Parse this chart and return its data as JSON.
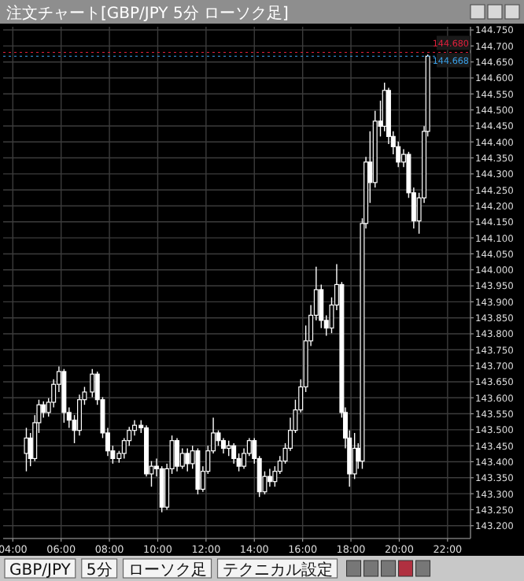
{
  "chart_data": {
    "type": "candlestick",
    "title": "注文チャート[GBP/JPY 5分 ローソク足]",
    "color": "#ffffff",
    "grid": true,
    "xlim": [
      3.6,
      22.95
    ],
    "ylim": [
      143.16,
      144.76
    ],
    "xticks": [
      {
        "value": 4,
        "label": "04:00"
      },
      {
        "value": 6,
        "label": "06:00"
      },
      {
        "value": 8,
        "label": "08:00"
      },
      {
        "value": 10,
        "label": "10:00"
      },
      {
        "value": 12,
        "label": "12:00"
      },
      {
        "value": 14,
        "label": "14:00"
      },
      {
        "value": 16,
        "label": "16:00"
      },
      {
        "value": 18,
        "label": "18:00"
      },
      {
        "value": 20,
        "label": "20:00"
      },
      {
        "value": 22,
        "label": "22:00"
      }
    ],
    "yticks": [
      {
        "value": 143.2,
        "label": "143.200"
      },
      {
        "value": 143.25,
        "label": "143.250"
      },
      {
        "value": 143.3,
        "label": "143.300"
      },
      {
        "value": 143.35,
        "label": "143.350"
      },
      {
        "value": 143.4,
        "label": "143.400"
      },
      {
        "value": 143.45,
        "label": "143.450"
      },
      {
        "value": 143.5,
        "label": "143.500"
      },
      {
        "value": 143.55,
        "label": "143.550"
      },
      {
        "value": 143.6,
        "label": "143.600"
      },
      {
        "value": 143.65,
        "label": "143.650"
      },
      {
        "value": 143.7,
        "label": "143.700"
      },
      {
        "value": 143.75,
        "label": "143.750"
      },
      {
        "value": 143.8,
        "label": "143.800"
      },
      {
        "value": 143.85,
        "label": "143.850"
      },
      {
        "value": 143.9,
        "label": "143.900"
      },
      {
        "value": 143.95,
        "label": "143.950"
      },
      {
        "value": 144.0,
        "label": "144.000"
      },
      {
        "value": 144.05,
        "label": "144.050"
      },
      {
        "value": 144.1,
        "label": "144.100"
      },
      {
        "value": 144.15,
        "label": "144.150"
      },
      {
        "value": 144.2,
        "label": "144.200"
      },
      {
        "value": 144.25,
        "label": "144.250"
      },
      {
        "value": 144.3,
        "label": "144.300"
      },
      {
        "value": 144.35,
        "label": "144.350"
      },
      {
        "value": 144.4,
        "label": "144.400"
      },
      {
        "value": 144.45,
        "label": "144.450"
      },
      {
        "value": 144.5,
        "label": "144.500"
      },
      {
        "value": 144.55,
        "label": "144.550"
      },
      {
        "value": 144.6,
        "label": "144.600"
      },
      {
        "value": 144.65,
        "label": "144.650"
      },
      {
        "value": 144.7,
        "label": "144.700"
      },
      {
        "value": 144.75,
        "label": "144.750"
      }
    ],
    "ref_lines": [
      {
        "axis": "y",
        "value": 144.68,
        "label": "144.680",
        "color": "#e0203c"
      },
      {
        "axis": "y",
        "value": 144.668,
        "label": "144.668",
        "color": "#3aa0e8"
      }
    ],
    "annotations": [
      "GBP/JPY",
      "5分",
      "ローソク足",
      "テクニカル設定"
    ],
    "x": [
      4.56,
      4.73,
      4.91,
      5.08,
      5.27,
      5.48,
      5.69,
      5.91,
      6.12,
      6.33,
      6.55,
      6.76,
      6.97,
      7.29,
      7.5,
      7.72,
      7.93,
      8.14,
      8.4,
      8.61,
      8.82,
      9.04,
      9.31,
      9.53,
      9.74,
      9.95,
      10.17,
      10.38,
      10.59,
      10.8,
      11.02,
      11.23,
      11.44,
      11.66,
      11.87,
      12.08,
      12.3,
      12.51,
      12.72,
      12.94,
      13.15,
      13.36,
      13.57,
      13.79,
      14.0,
      14.21,
      14.43,
      14.64,
      14.85,
      15.06,
      15.28,
      15.49,
      15.7,
      15.92,
      16.13,
      16.34,
      16.56,
      16.77,
      16.98,
      17.2,
      17.41,
      17.62,
      17.77,
      17.94,
      18.15,
      18.3,
      18.47,
      18.62,
      18.79,
      19.0,
      19.22,
      19.39,
      19.56,
      19.75,
      19.96,
      20.18,
      20.39,
      20.6,
      20.82,
      21.03,
      21.18
    ],
    "ohlc": [
      [
        143.426,
        143.506,
        143.37,
        143.474
      ],
      [
        143.474,
        143.49,
        143.386,
        143.41
      ],
      [
        143.41,
        143.546,
        143.402,
        143.522
      ],
      [
        143.522,
        143.594,
        143.49,
        143.578
      ],
      [
        143.578,
        143.589,
        143.538,
        143.554
      ],
      [
        143.554,
        143.599,
        143.541,
        143.586
      ],
      [
        143.586,
        143.658,
        143.57,
        143.642
      ],
      [
        143.642,
        143.698,
        143.618,
        143.682
      ],
      [
        143.682,
        143.69,
        143.522,
        143.554
      ],
      [
        143.554,
        143.57,
        143.506,
        143.53
      ],
      [
        143.53,
        143.546,
        143.458,
        143.498
      ],
      [
        143.498,
        143.61,
        143.482,
        143.594
      ],
      [
        143.594,
        143.634,
        143.578,
        143.618
      ],
      [
        143.618,
        143.69,
        143.602,
        143.674
      ],
      [
        143.674,
        143.682,
        143.578,
        143.594
      ],
      [
        143.594,
        143.602,
        143.474,
        143.49
      ],
      [
        143.49,
        143.506,
        143.418,
        143.434
      ],
      [
        143.434,
        143.45,
        143.394,
        143.41
      ],
      [
        143.41,
        143.434,
        143.397,
        143.426
      ],
      [
        143.426,
        143.474,
        143.41,
        143.466
      ],
      [
        143.466,
        143.509,
        143.45,
        143.498
      ],
      [
        143.498,
        143.53,
        143.482,
        143.514
      ],
      [
        143.514,
        143.53,
        143.49,
        143.506
      ],
      [
        143.506,
        143.514,
        143.354,
        143.362
      ],
      [
        143.362,
        143.402,
        143.322,
        143.386
      ],
      [
        143.386,
        143.41,
        143.354,
        143.378
      ],
      [
        143.378,
        143.386,
        143.242,
        143.258
      ],
      [
        143.258,
        143.394,
        143.25,
        143.378
      ],
      [
        143.378,
        143.482,
        143.362,
        143.466
      ],
      [
        143.466,
        143.474,
        143.37,
        143.386
      ],
      [
        143.386,
        143.442,
        143.378,
        143.426
      ],
      [
        143.426,
        143.442,
        143.37,
        143.394
      ],
      [
        143.394,
        143.45,
        143.378,
        143.434
      ],
      [
        143.434,
        143.442,
        143.298,
        143.314
      ],
      [
        143.314,
        143.386,
        143.306,
        143.37
      ],
      [
        143.37,
        143.45,
        143.362,
        143.434
      ],
      [
        143.434,
        143.538,
        143.426,
        143.49
      ],
      [
        143.49,
        143.498,
        143.45,
        143.466
      ],
      [
        143.466,
        143.474,
        143.426,
        143.442
      ],
      [
        143.442,
        143.466,
        143.418,
        143.45
      ],
      [
        143.45,
        143.458,
        143.394,
        143.41
      ],
      [
        143.41,
        143.426,
        143.37,
        143.386
      ],
      [
        143.386,
        143.442,
        143.378,
        143.426
      ],
      [
        143.426,
        143.474,
        143.418,
        143.466
      ],
      [
        143.466,
        143.474,
        143.394,
        143.41
      ],
      [
        143.41,
        143.418,
        143.29,
        143.306
      ],
      [
        143.306,
        143.37,
        143.298,
        143.354
      ],
      [
        143.354,
        143.378,
        143.322,
        143.338
      ],
      [
        143.338,
        143.386,
        143.322,
        143.37
      ],
      [
        143.37,
        143.418,
        143.362,
        143.402
      ],
      [
        143.402,
        143.458,
        143.394,
        143.442
      ],
      [
        143.442,
        143.538,
        143.434,
        143.498
      ],
      [
        143.498,
        143.594,
        143.49,
        143.562
      ],
      [
        143.562,
        143.658,
        143.554,
        143.634
      ],
      [
        143.634,
        143.826,
        143.618,
        143.778
      ],
      [
        143.778,
        143.89,
        143.762,
        143.858
      ],
      [
        143.858,
        144.01,
        143.842,
        143.938
      ],
      [
        143.938,
        143.954,
        143.818,
        143.842
      ],
      [
        143.842,
        143.858,
        143.794,
        143.818
      ],
      [
        143.818,
        143.914,
        143.802,
        143.89
      ],
      [
        143.89,
        144.018,
        143.874,
        143.954
      ],
      [
        143.954,
        143.962,
        143.538,
        143.554
      ],
      [
        143.554,
        143.57,
        143.442,
        143.474
      ],
      [
        143.474,
        143.498,
        143.322,
        143.362
      ],
      [
        143.362,
        143.49,
        143.346,
        143.442
      ],
      [
        143.442,
        143.458,
        143.378,
        143.402
      ],
      [
        143.402,
        144.161,
        143.378,
        144.145
      ],
      [
        144.145,
        144.353,
        144.129,
        144.337
      ],
      [
        144.337,
        144.433,
        144.209,
        144.273
      ],
      [
        144.273,
        144.497,
        144.257,
        144.465
      ],
      [
        144.465,
        144.529,
        144.417,
        144.449
      ],
      [
        144.449,
        144.585,
        144.433,
        144.561
      ],
      [
        144.561,
        144.569,
        144.393,
        144.417
      ],
      [
        144.417,
        144.433,
        144.361,
        144.385
      ],
      [
        144.385,
        144.401,
        144.321,
        144.337
      ],
      [
        144.337,
        144.377,
        144.321,
        144.361
      ],
      [
        144.361,
        144.369,
        144.225,
        144.241
      ],
      [
        144.241,
        144.257,
        144.129,
        144.153
      ],
      [
        144.153,
        144.241,
        144.113,
        144.225
      ],
      [
        144.225,
        144.449,
        144.209,
        144.433
      ],
      [
        144.433,
        144.673,
        144.417,
        144.668
      ]
    ]
  }
}
